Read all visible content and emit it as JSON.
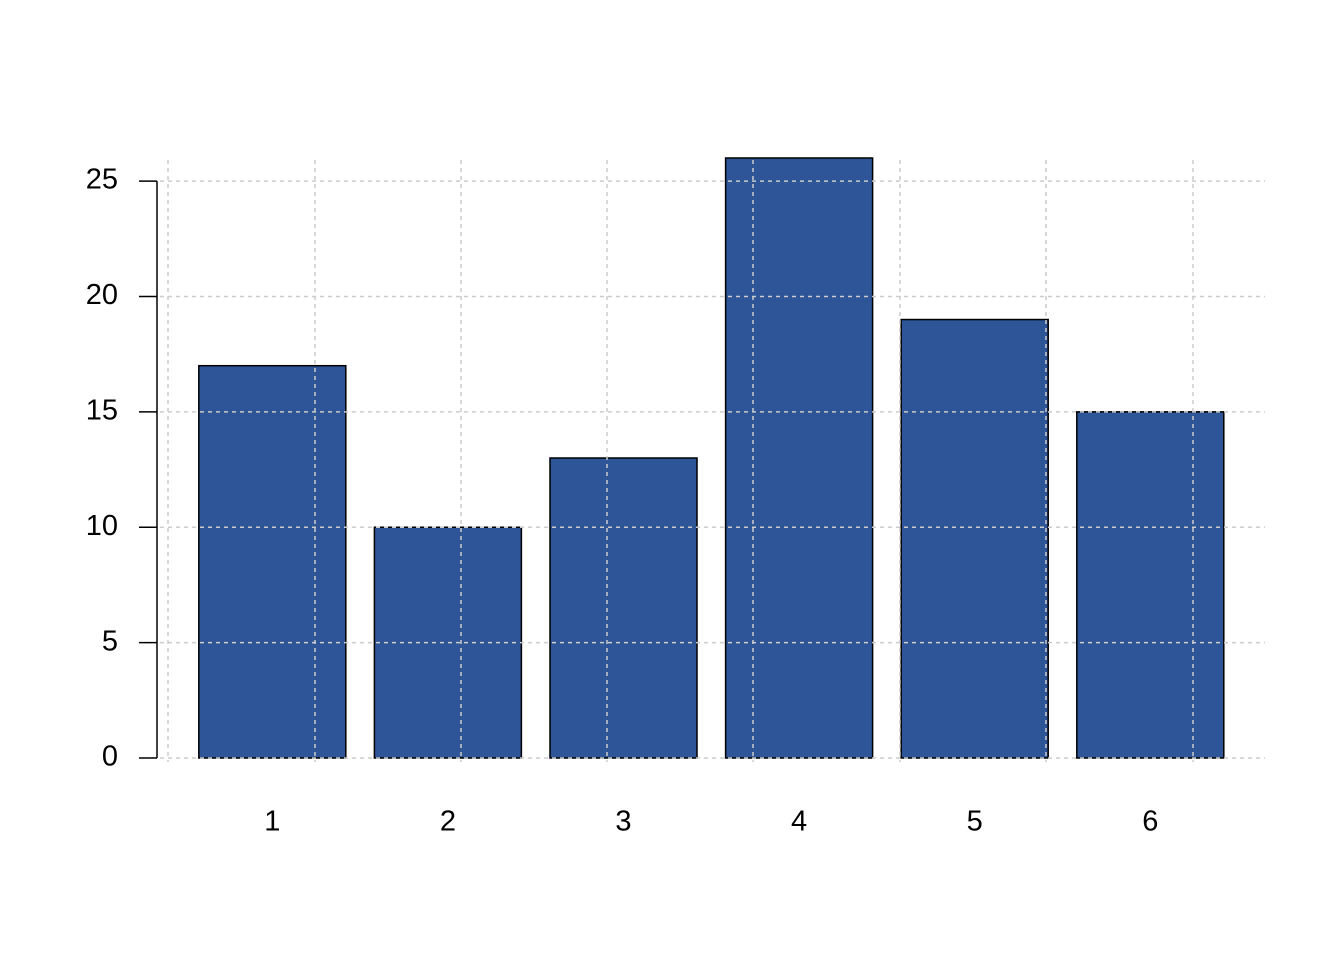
{
  "chart_data": {
    "type": "bar",
    "categories": [
      "1",
      "2",
      "3",
      "4",
      "5",
      "6"
    ],
    "values": [
      17,
      10,
      13,
      26,
      19,
      15
    ],
    "color": "#2e5597",
    "ylim": [
      0,
      26
    ],
    "yticks": [
      0,
      5,
      10,
      15,
      20,
      25
    ],
    "grid": true
  }
}
